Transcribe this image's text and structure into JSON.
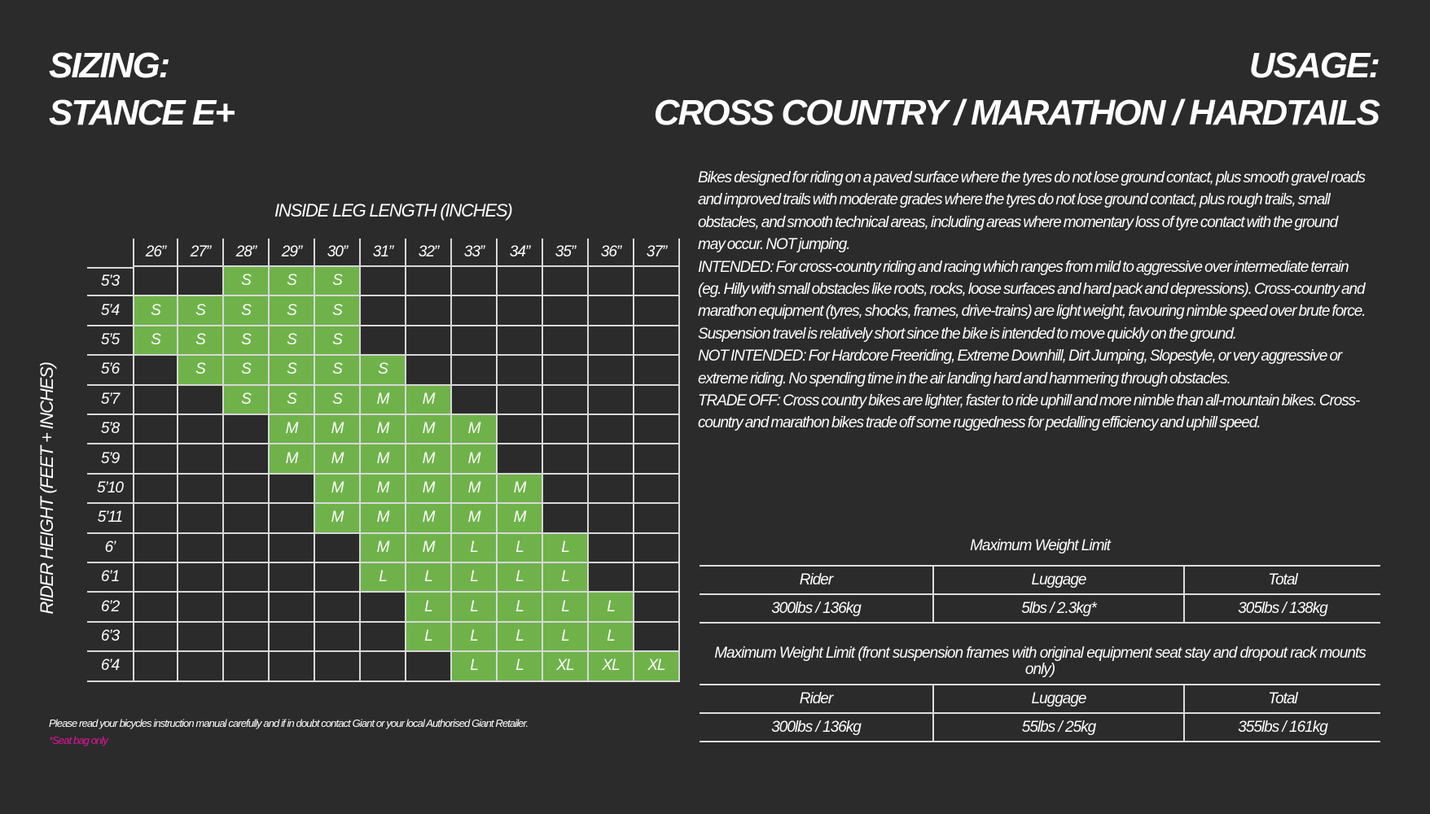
{
  "header": {
    "sizing_title": "SIZING:",
    "model": "STANCE E+",
    "usage_title": "USAGE:",
    "usage": "CROSS COUNTRY / MARATHON / HARDTAILS"
  },
  "size_chart": {
    "x_axis_title": "INSIDE LEG LENGTH (INCHES)",
    "y_axis_title": "RIDER HEIGHT (FEET + INCHES)",
    "columns": [
      "26”",
      "27”",
      "28”",
      "29”",
      "30”",
      "31”",
      "32”",
      "33”",
      "34”",
      "35”",
      "36”",
      "37”"
    ],
    "rows": [
      {
        "height": "5’3",
        "sizes": [
          null,
          null,
          "S",
          "S",
          "S",
          null,
          null,
          null,
          null,
          null,
          null,
          null
        ]
      },
      {
        "height": "5’4",
        "sizes": [
          "S",
          "S",
          "S",
          "S",
          "S",
          null,
          null,
          null,
          null,
          null,
          null,
          null
        ]
      },
      {
        "height": "5’5",
        "sizes": [
          "S",
          "S",
          "S",
          "S",
          "S",
          null,
          null,
          null,
          null,
          null,
          null,
          null
        ]
      },
      {
        "height": "5’6",
        "sizes": [
          null,
          "S",
          "S",
          "S",
          "S",
          "S",
          null,
          null,
          null,
          null,
          null,
          null
        ]
      },
      {
        "height": "5’7",
        "sizes": [
          null,
          null,
          "S",
          "S",
          "S",
          "M",
          "M",
          null,
          null,
          null,
          null,
          null
        ]
      },
      {
        "height": "5’8",
        "sizes": [
          null,
          null,
          null,
          "M",
          "M",
          "M",
          "M",
          "M",
          null,
          null,
          null,
          null
        ]
      },
      {
        "height": "5’9",
        "sizes": [
          null,
          null,
          null,
          "M",
          "M",
          "M",
          "M",
          "M",
          null,
          null,
          null,
          null
        ]
      },
      {
        "height": "5’10",
        "sizes": [
          null,
          null,
          null,
          null,
          "M",
          "M",
          "M",
          "M",
          "M",
          null,
          null,
          null
        ]
      },
      {
        "height": "5’11",
        "sizes": [
          null,
          null,
          null,
          null,
          "M",
          "M",
          "M",
          "M",
          "M",
          null,
          null,
          null
        ]
      },
      {
        "height": "6’",
        "sizes": [
          null,
          null,
          null,
          null,
          null,
          "M",
          "M",
          "L",
          "L",
          "L",
          null,
          null
        ]
      },
      {
        "height": "6’1",
        "sizes": [
          null,
          null,
          null,
          null,
          null,
          "L",
          "L",
          "L",
          "L",
          "L",
          null,
          null
        ]
      },
      {
        "height": "6’2",
        "sizes": [
          null,
          null,
          null,
          null,
          null,
          null,
          "L",
          "L",
          "L",
          "L",
          "L",
          null
        ]
      },
      {
        "height": "6’3",
        "sizes": [
          null,
          null,
          null,
          null,
          null,
          null,
          "L",
          "L",
          "L",
          "L",
          "L",
          null
        ]
      },
      {
        "height": "6’4",
        "sizes": [
          null,
          null,
          null,
          null,
          null,
          null,
          null,
          "L",
          "L",
          "XL",
          "XL",
          "XL"
        ]
      }
    ]
  },
  "description": {
    "paragraphs": [
      "Bikes designed for riding on a paved surface where the tyres do not lose ground contact, plus smooth gravel roads and improved trails with moderate grades where the tyres do not lose ground contact, plus rough trails, small obstacles, and smooth technical areas, including areas where momentary loss of tyre contact with the ground may occur. NOT jumping.",
      "INTENDED: For cross-country riding and racing which ranges from mild to aggressive over intermediate terrain (eg. Hilly with small obstacles like roots, rocks, loose surfaces and hard pack and depressions). Cross-country and marathon equipment (tyres, shocks, frames, drive-trains) are light weight, favouring nimble speed over brute force. Suspension travel is relatively short since the bike is intended to move quickly on the ground.",
      "NOT INTENDED: For Hardcore Freeriding, Extreme Downhill, Dirt Jumping, Slopestyle, or very aggressive or extreme riding. No spending time in the air landing hard and hammering through obstacles.",
      "TRADE OFF: Cross country bikes are lighter, faster to ride uphill and more nimble than all-mountain bikes. Cross-country and marathon bikes trade off some ruggedness for pedalling efficiency and uphill speed."
    ]
  },
  "weight_tables": [
    {
      "title": "Maximum Weight Limit",
      "headers": [
        "Rider",
        "Luggage",
        "Total"
      ],
      "values": [
        "300lbs / 136kg",
        "5lbs / 2.3kg*",
        "305lbs / 138kg"
      ]
    },
    {
      "title": "Maximum Weight Limit (front suspension frames with original equipment seat stay and dropout rack mounts only)",
      "headers": [
        "Rider",
        "Luggage",
        "Total"
      ],
      "values": [
        "300lbs / 136kg",
        "55lbs / 25kg",
        "355lbs / 161kg"
      ]
    }
  ],
  "footer": {
    "note": "Please read your bicycles instruction manual carefully and if in doubt contact Giant or your local Authorised Giant Retailer.",
    "seat_bag": "*Seat bag only"
  }
}
